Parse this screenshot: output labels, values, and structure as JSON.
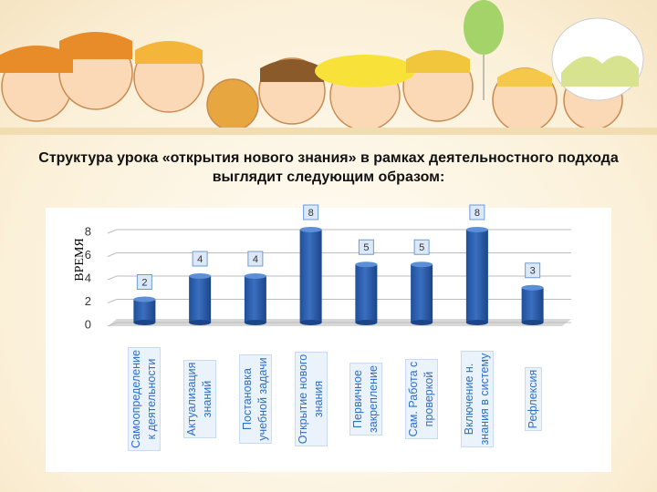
{
  "chart_data": {
    "type": "bar",
    "title": "Структура урока «открытия нового знания» в рамках деятельностного подхода\nвыглядит следующим образом:",
    "y_label": "ВРЕМЯ",
    "categories": [
      "Самоопределение\nк деятельности",
      "Актуализация\nзнаний",
      "Постановка\nучебной задачи",
      "Открытие нового\nзнания",
      "Первичное\nзакрепление",
      "Сам. Работа с\nпроверкой",
      "Включение н.\nзнания в систему",
      "Рефлексия"
    ],
    "values": [
      2,
      4,
      4,
      8,
      5,
      5,
      8,
      3
    ],
    "color": "#3a6fc0",
    "ylim": [
      0,
      8
    ],
    "yticks": [
      0,
      2,
      4,
      6,
      8
    ],
    "grid": true
  }
}
